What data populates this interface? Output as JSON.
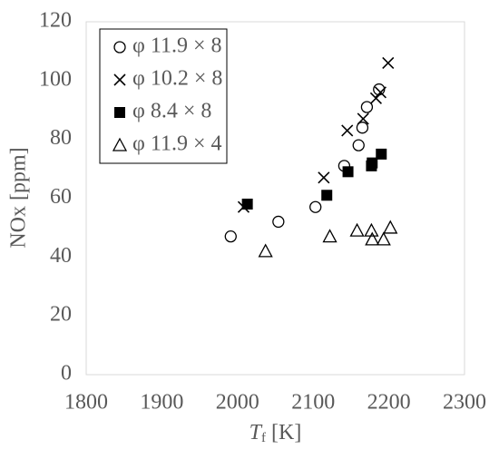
{
  "chart_data": {
    "type": "scatter",
    "xlabel": "T",
    "xlabel_sub": "f",
    "xlabel_unit": "[K]",
    "ylabel": "NOx [ppm]",
    "xlim": [
      1800,
      2300
    ],
    "xticks": [
      1800,
      1900,
      2000,
      2100,
      2200,
      2300
    ],
    "ylim": [
      0,
      120
    ],
    "yticks": [
      0,
      20,
      40,
      60,
      80,
      100,
      120
    ],
    "legend": "upper-left",
    "series": [
      {
        "name": "φ 11.9 × 8",
        "marker": "circle",
        "color": "#000000",
        "x": [
          1991,
          2054,
          2103,
          2141,
          2160,
          2165,
          2171,
          2187
        ],
        "values": [
          47,
          52,
          57,
          71,
          78,
          84,
          91,
          97
        ]
      },
      {
        "name": "φ 10.2 × 8",
        "marker": "cross",
        "color": "#000000",
        "x": [
          2008,
          2114,
          2145,
          2166,
          2183,
          2189,
          2199
        ],
        "values": [
          57,
          67,
          83,
          87,
          94,
          96,
          106
        ]
      },
      {
        "name": "φ 8.4 × 8",
        "marker": "square",
        "color": "#000000",
        "x": [
          2013,
          2118,
          2146,
          2177,
          2178,
          2190
        ],
        "values": [
          58,
          61,
          69,
          71,
          72,
          75
        ]
      },
      {
        "name": "φ 11.9 × 4",
        "marker": "triangle",
        "color": "#000000",
        "x": [
          2037,
          2122,
          2158,
          2177,
          2178,
          2193,
          2202
        ],
        "values": [
          42,
          47,
          49,
          49,
          46,
          46,
          50
        ]
      }
    ]
  }
}
